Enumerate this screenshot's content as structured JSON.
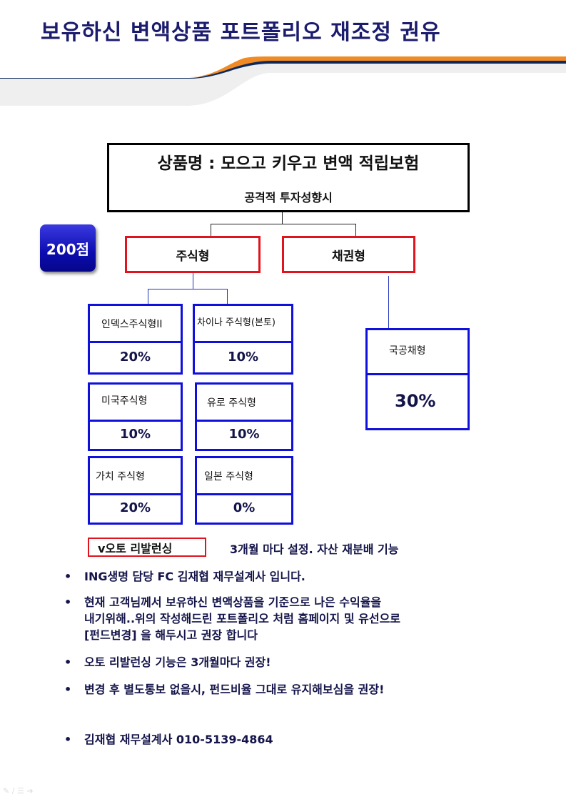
{
  "title": "보유하신 변액상품 포트폴리오 재조정 권유",
  "colors": {
    "title": "#1c1c6e",
    "accent_orange": "#f08a24",
    "accent_navy": "#0c2a5c",
    "fund_border": "#1010dd",
    "category_border": "#e0141e",
    "badge": "#0c0cb0"
  },
  "product": {
    "name": "상품명 : 모으고 키우고 변액 적립보험",
    "profile": "공격적 투자성향시"
  },
  "score_badge": "200점",
  "categories": {
    "stock": "주식형",
    "bond": "채권형"
  },
  "funds": [
    {
      "name": "인덱스주식형II",
      "pct": "20%"
    },
    {
      "name": "차이나 주식형(본토)",
      "pct": "10%"
    },
    {
      "name": "미국주식형",
      "pct": "10%"
    },
    {
      "name": "유로 주식형",
      "pct": "10%"
    },
    {
      "name": "가치 주식형",
      "pct": "20%"
    },
    {
      "name": "일본 주식형",
      "pct": "0%"
    },
    {
      "name": "국공채형",
      "pct": "30%"
    }
  ],
  "auto_rebalancing": {
    "label": "v오토 리발런싱",
    "note": "3개월 마다 설정. 자산 재분배 기능"
  },
  "bullets": [
    "ING생명 담당 FC 김재협 재무설계사 입니다.",
    "현재 고객님께서 보유하신 변액상품을 기준으로 나은 수익율을\n내기위해..위의 작성해드린 포트폴리오 처럼 홈페이지 및 유선으로\n[펀드변경] 을 해두시고 권장 합니다",
    "오토 리발런싱 기능은 3개월마다 권장!",
    "변경 후 별도통보 없을시, 펀드비율 그대로 유지해보심을 권장!",
    "김재협 재무설계사 010-5139-4864"
  ],
  "bullet_char": "•"
}
